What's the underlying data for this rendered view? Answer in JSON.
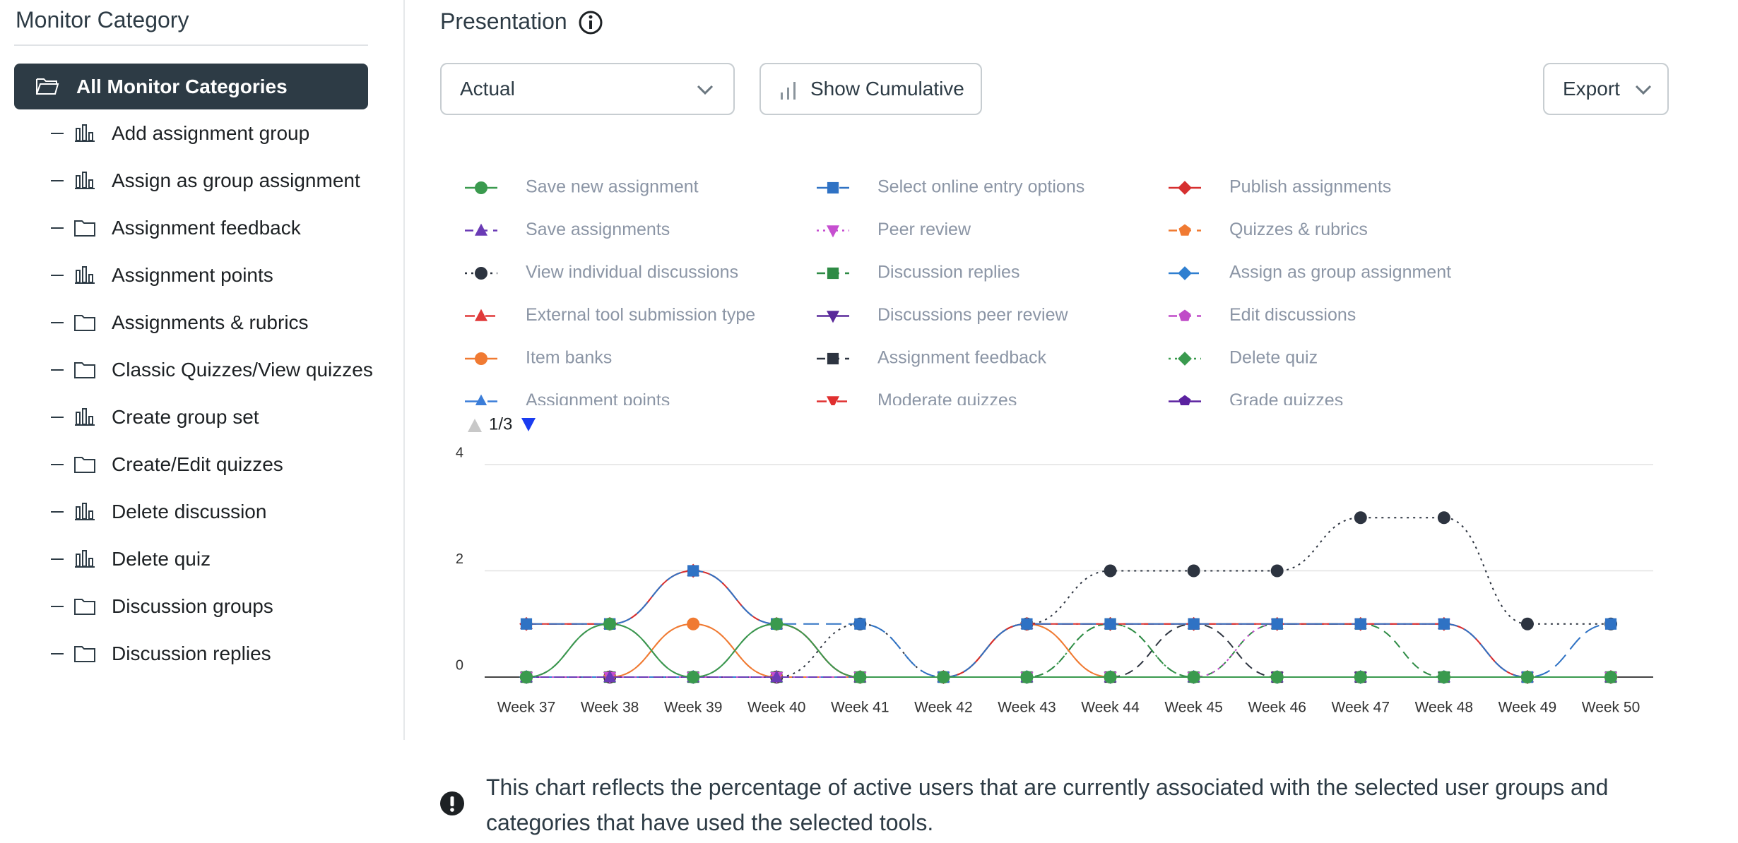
{
  "sidebar": {
    "title": "Monitor Category",
    "selected": "All Monitor Categories",
    "items": [
      {
        "label": "Add assignment group",
        "icon": "chart"
      },
      {
        "label": "Assign as group assignment",
        "icon": "chart"
      },
      {
        "label": "Assignment feedback",
        "icon": "folder"
      },
      {
        "label": "Assignment points",
        "icon": "chart"
      },
      {
        "label": "Assignments & rubrics",
        "icon": "folder"
      },
      {
        "label": "Classic Quizzes/View quizzes",
        "icon": "folder"
      },
      {
        "label": "Create group set",
        "icon": "chart"
      },
      {
        "label": "Create/Edit quizzes",
        "icon": "folder"
      },
      {
        "label": "Delete discussion",
        "icon": "chart"
      },
      {
        "label": "Delete quiz",
        "icon": "chart"
      },
      {
        "label": "Discussion groups",
        "icon": "folder"
      },
      {
        "label": "Discussion replies",
        "icon": "folder"
      }
    ]
  },
  "header": {
    "title": "Presentation"
  },
  "controls": {
    "presentation": "Actual",
    "cumulative": "Show Cumulative",
    "export": "Export"
  },
  "legend_page": "1/3",
  "chart_data": {
    "type": "line",
    "categories": [
      "Week 37",
      "Week 38",
      "Week 39",
      "Week 40",
      "Week 41",
      "Week 42",
      "Week 43",
      "Week 44",
      "Week 45",
      "Week 46",
      "Week 47",
      "Week 48",
      "Week 49",
      "Week 50"
    ],
    "ylim": [
      0,
      4
    ],
    "yticks": [
      0,
      2,
      4
    ],
    "grid": true,
    "series": [
      {
        "name": "Save new assignment",
        "color": "#3a9a4e",
        "marker": "circle",
        "dash": "solid",
        "values": [
          0,
          1,
          0,
          1,
          0,
          0,
          0,
          0,
          0,
          0,
          0,
          0,
          0,
          0
        ]
      },
      {
        "name": "Select online entry options",
        "color": "#2f72c4",
        "marker": "square",
        "dash": "longdash",
        "values": [
          1,
          1,
          2,
          1,
          1,
          0,
          1,
          1,
          1,
          1,
          1,
          1,
          0,
          1
        ]
      },
      {
        "name": "Publish assignments",
        "color": "#d62f2f",
        "marker": "diamond",
        "dash": "solid",
        "values": [
          1,
          1,
          2,
          1,
          0,
          0,
          1,
          1,
          1,
          1,
          1,
          1,
          0,
          0
        ]
      },
      {
        "name": "Save assignments",
        "color": "#6a3bb5",
        "marker": "triangle-up",
        "dash": "dash",
        "values": [
          0,
          0,
          0,
          0,
          0,
          0,
          0,
          0,
          0,
          0,
          0,
          0,
          0,
          0
        ]
      },
      {
        "name": "Peer review",
        "color": "#c64fd0",
        "marker": "triangle-down",
        "dash": "dot",
        "values": [
          0,
          0,
          0,
          0,
          0,
          0,
          0,
          0,
          0,
          1,
          1,
          1,
          0,
          0
        ]
      },
      {
        "name": "Quizzes & rubrics",
        "color": "#f07a32",
        "marker": "pentagon",
        "dash": "dash",
        "values": [
          0,
          0,
          1,
          0,
          0,
          0,
          1,
          0,
          0,
          0,
          0,
          0,
          0,
          0
        ]
      },
      {
        "name": "View individual discussions",
        "color": "#2d3440",
        "marker": "circle",
        "dash": "dot",
        "values": [
          0,
          0,
          0,
          0,
          1,
          0,
          1,
          2,
          2,
          2,
          3,
          3,
          1,
          1
        ]
      },
      {
        "name": "Discussion replies",
        "color": "#2e8b45",
        "marker": "square",
        "dash": "dash",
        "values": [
          0,
          0,
          0,
          0,
          0,
          0,
          0,
          1,
          0,
          1,
          1,
          0,
          0,
          0
        ]
      },
      {
        "name": "Assign as group assignment",
        "color": "#2f7fd0",
        "marker": "diamond",
        "dash": "dashdot",
        "values": [
          0,
          0,
          0,
          0,
          0,
          0,
          0,
          0,
          0,
          0,
          0,
          0,
          0,
          0
        ]
      },
      {
        "name": "External tool submission type",
        "color": "#e03a3a",
        "marker": "triangle-up",
        "dash": "dashdot",
        "values": [
          1,
          1,
          2,
          1,
          0,
          0,
          1,
          1,
          1,
          1,
          1,
          1,
          0,
          0
        ]
      },
      {
        "name": "Discussions peer review",
        "color": "#5a2a9a",
        "marker": "triangle-down",
        "dash": "solid",
        "values": [
          0,
          0,
          0,
          0,
          0,
          0,
          0,
          0,
          0,
          0,
          0,
          0,
          0,
          0
        ]
      },
      {
        "name": "Edit discussions",
        "color": "#c04cc8",
        "marker": "pentagon",
        "dash": "dash",
        "values": [
          0,
          0,
          0,
          0,
          0,
          0,
          0,
          0,
          0,
          0,
          0,
          0,
          0,
          0
        ]
      },
      {
        "name": "Item banks",
        "color": "#f07a32",
        "marker": "circle",
        "dash": "solid",
        "values": [
          0,
          0,
          1,
          0,
          0,
          0,
          1,
          0,
          0,
          0,
          0,
          0,
          0,
          0
        ]
      },
      {
        "name": "Assignment feedback",
        "color": "#2d3440",
        "marker": "square",
        "dash": "dash",
        "values": [
          0,
          1,
          0,
          1,
          0,
          0,
          0,
          0,
          1,
          0,
          0,
          0,
          0,
          0
        ]
      },
      {
        "name": "Delete quiz",
        "color": "#3a9a4e",
        "marker": "diamond",
        "dash": "dot",
        "values": [
          0,
          0,
          0,
          0,
          0,
          0,
          0,
          1,
          0,
          0,
          0,
          0,
          0,
          0
        ]
      },
      {
        "name": "Assignment points",
        "color": "#3b7dd8",
        "marker": "triangle-up",
        "dash": "longdash",
        "values": [
          0,
          0,
          0,
          0,
          0,
          0,
          0,
          0,
          0,
          0,
          0,
          0,
          0,
          0
        ]
      },
      {
        "name": "Moderate quizzes",
        "color": "#e03030",
        "marker": "triangle-down",
        "dash": "dashdot",
        "values": [
          0,
          0,
          0,
          0,
          0,
          0,
          0,
          0,
          0,
          0,
          0,
          0,
          0,
          0
        ]
      },
      {
        "name": "Grade quizzes",
        "color": "#5b22a0",
        "marker": "pentagon",
        "dash": "solid",
        "values": [
          0,
          0,
          0,
          0,
          0,
          0,
          0,
          0,
          0,
          0,
          0,
          0,
          0,
          0
        ]
      }
    ]
  },
  "note": "This chart reflects the percentage of active users that are currently associated with the selected user groups and categories that have used the selected tools."
}
